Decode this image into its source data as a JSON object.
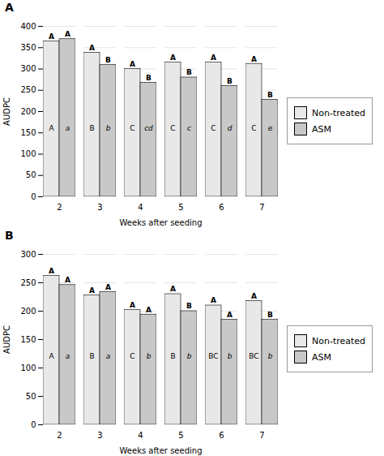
{
  "chart_data": [
    {
      "type": "bar",
      "title": "A",
      "categories": [
        "2",
        "3",
        "4",
        "5",
        "6",
        "7"
      ],
      "series": [
        {
          "name": "Non-treated",
          "color": "#e8e8e8",
          "values": [
            365,
            338,
            300,
            315,
            315,
            312
          ],
          "top_labels": [
            "A",
            "A",
            "A",
            "A",
            "A",
            "A"
          ],
          "mid_labels": [
            "A",
            "B",
            "C",
            "C",
            "C",
            "C"
          ]
        },
        {
          "name": "ASM",
          "color": "#c8c8c8",
          "values": [
            370,
            310,
            268,
            280,
            260,
            228
          ],
          "top_labels": [
            "A",
            "B",
            "B",
            "B",
            "B",
            "B"
          ],
          "mid_labels": [
            "a",
            "b",
            "cd",
            "c",
            "d",
            "e"
          ]
        }
      ],
      "xlabel": "Weeks after seeding",
      "ylabel": "AUDPC",
      "ylim": [
        0,
        400
      ],
      "yticks": [
        0,
        50,
        100,
        150,
        200,
        250,
        300,
        350,
        400
      ],
      "grid": true,
      "legend": "right"
    },
    {
      "type": "bar",
      "title": "B",
      "categories": [
        "2",
        "3",
        "4",
        "5",
        "6",
        "7"
      ],
      "series": [
        {
          "name": "Non-treated",
          "color": "#e8e8e8",
          "values": [
            262,
            228,
            202,
            230,
            210,
            218
          ],
          "top_labels": [
            "A",
            "A",
            "A",
            "A",
            "A",
            "A"
          ],
          "mid_labels": [
            "A",
            "B",
            "C",
            "B",
            "BC",
            "BC"
          ]
        },
        {
          "name": "ASM",
          "color": "#c8c8c8",
          "values": [
            246,
            234,
            194,
            200,
            185,
            185
          ],
          "top_labels": [
            "A",
            "A",
            "A",
            "B",
            "A",
            "B"
          ],
          "mid_labels": [
            "a",
            "a",
            "b",
            "b",
            "b",
            "b"
          ]
        }
      ],
      "xlabel": "Weeks after seeding",
      "ylabel": "AUDPC",
      "ylim": [
        0,
        300
      ],
      "yticks": [
        0,
        50,
        100,
        150,
        200,
        250,
        300
      ],
      "grid": true,
      "legend": "right"
    }
  ]
}
